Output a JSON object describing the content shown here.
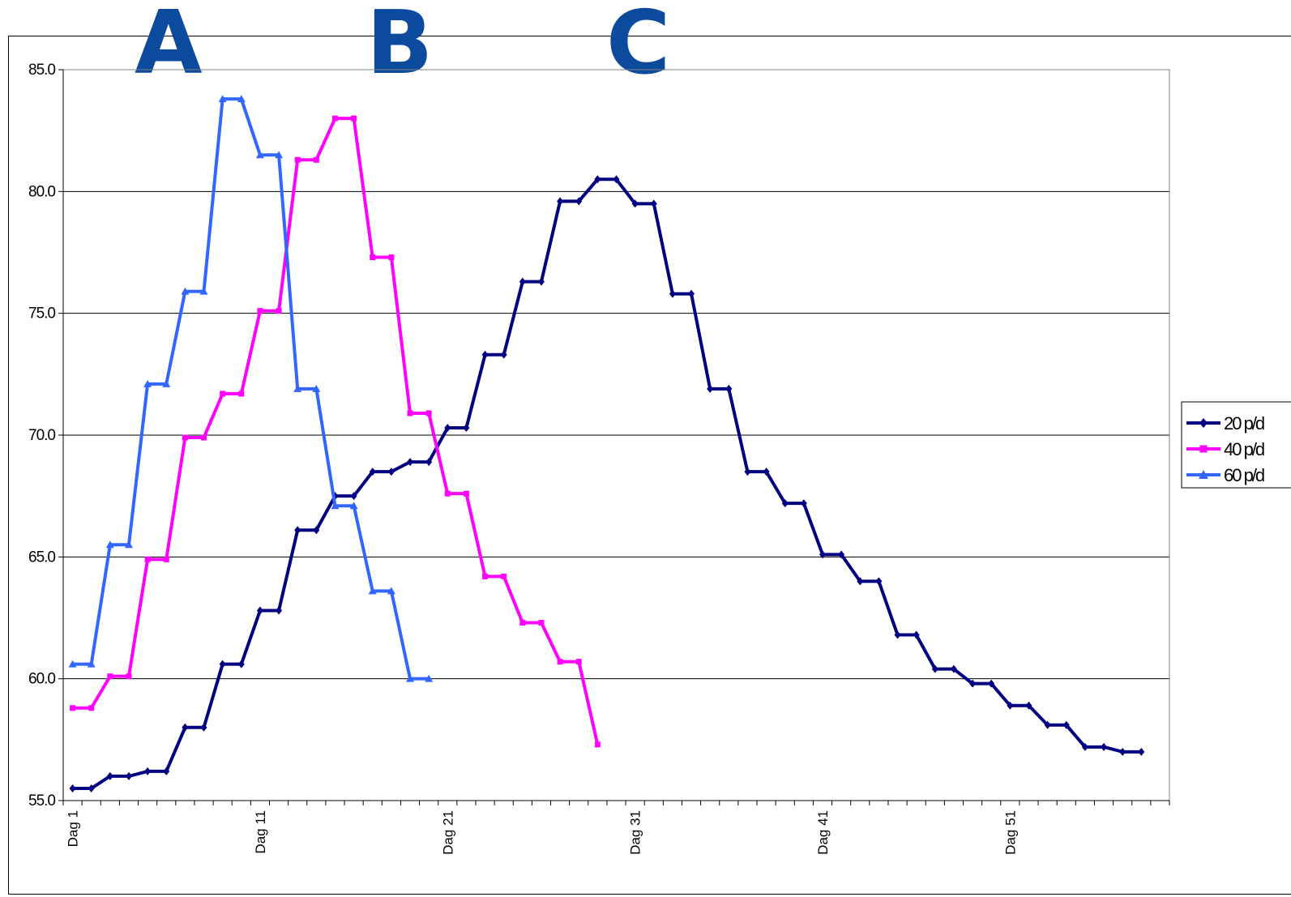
{
  "annotations": [
    "A",
    "B",
    "C"
  ],
  "chart_data": {
    "type": "line",
    "ylim": [
      55,
      85
    ],
    "yticks": [
      "55.0",
      "60.0",
      "65.0",
      "70.0",
      "75.0",
      "80.0",
      "85.0"
    ],
    "x_count": 59,
    "x_tick_labels": [
      {
        "index": 1,
        "label": "Dag 1"
      },
      {
        "index": 11,
        "label": "Dag 11"
      },
      {
        "index": 21,
        "label": "Dag 21"
      },
      {
        "index": 31,
        "label": "Dag 31"
      },
      {
        "index": 41,
        "label": "Dag 41"
      },
      {
        "index": 51,
        "label": "Dag 51"
      }
    ],
    "grid": true,
    "legend_position": "right",
    "series": [
      {
        "name": "20 p/d",
        "color": "#000080",
        "marker": "diamond",
        "values": [
          55.5,
          55.5,
          56.0,
          56.0,
          56.2,
          56.2,
          58.0,
          58.0,
          60.6,
          60.6,
          62.8,
          62.8,
          66.1,
          66.1,
          67.5,
          67.5,
          68.5,
          68.5,
          68.9,
          68.9,
          70.3,
          70.3,
          73.3,
          73.3,
          76.3,
          76.3,
          79.6,
          79.6,
          80.5,
          80.5,
          79.5,
          79.5,
          75.8,
          75.8,
          71.9,
          71.9,
          68.5,
          68.5,
          67.2,
          67.2,
          65.1,
          65.1,
          64.0,
          64.0,
          61.8,
          61.8,
          60.4,
          60.4,
          59.8,
          59.8,
          58.9,
          58.9,
          58.1,
          58.1,
          57.2,
          57.2,
          57.0,
          57.0
        ]
      },
      {
        "name": "40 p/d",
        "color": "#ff00ff",
        "marker": "square",
        "values": [
          58.8,
          58.8,
          60.1,
          60.1,
          64.9,
          64.9,
          69.9,
          69.9,
          71.7,
          71.7,
          75.1,
          75.1,
          81.3,
          81.3,
          83.0,
          83.0,
          77.3,
          77.3,
          70.9,
          70.9,
          67.6,
          67.6,
          64.2,
          64.2,
          62.3,
          62.3,
          60.7,
          60.7,
          57.3
        ]
      },
      {
        "name": "60 p/d",
        "color": "#3366ff",
        "marker": "triangle",
        "values": [
          60.6,
          60.6,
          65.5,
          65.5,
          72.1,
          72.1,
          75.9,
          75.9,
          83.8,
          83.8,
          81.5,
          81.5,
          71.9,
          71.9,
          67.1,
          67.1,
          63.6,
          63.6,
          60.0,
          60.0
        ]
      }
    ]
  }
}
